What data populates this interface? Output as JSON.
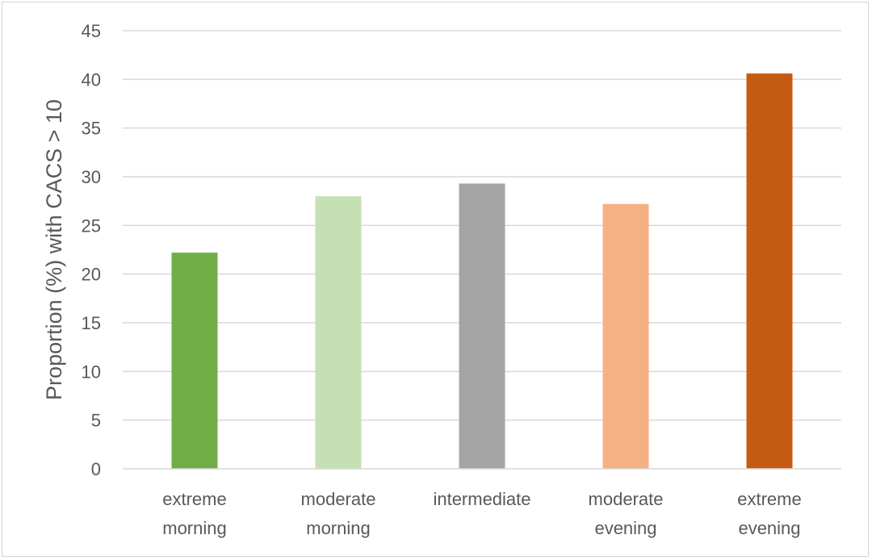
{
  "chart_data": {
    "type": "bar",
    "title": "",
    "xlabel": "",
    "ylabel": "Proportion (%) with CACS > 10",
    "ylim": [
      0,
      45
    ],
    "yticks": [
      0,
      5,
      10,
      15,
      20,
      25,
      30,
      35,
      40,
      45
    ],
    "grid": true,
    "legend": "none",
    "categories": [
      [
        "extreme",
        "morning"
      ],
      [
        "moderate",
        "morning"
      ],
      [
        "intermediate"
      ],
      [
        "moderate",
        "evening"
      ],
      [
        "extreme",
        "evening"
      ]
    ],
    "values": [
      22.2,
      28.0,
      29.3,
      27.2,
      40.6
    ],
    "colors": [
      "#70ad47",
      "#c5e0b4",
      "#a5a5a5",
      "#f4b183",
      "#c55a11"
    ]
  }
}
